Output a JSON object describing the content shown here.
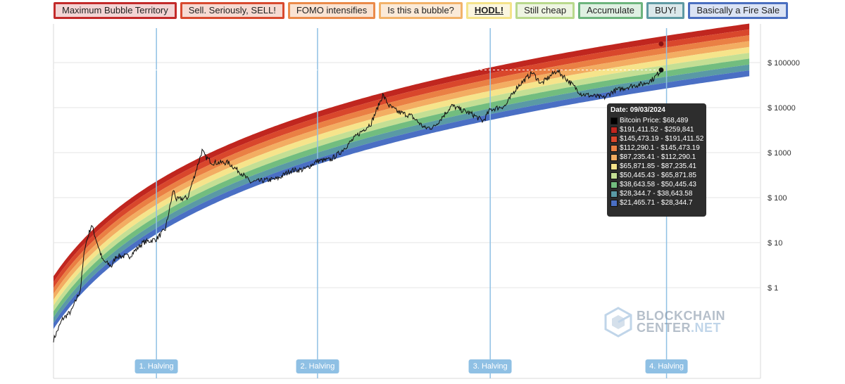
{
  "legend": [
    {
      "label": "Maximum Bubble Territory",
      "border": "#c32a2a",
      "bg": "#f3d4d4",
      "bold": false
    },
    {
      "label": "Sell. Seriously, SELL!",
      "border": "#d84a2f",
      "bg": "#f6dad2",
      "bold": false
    },
    {
      "label": "FOMO intensifies",
      "border": "#ea8a4a",
      "bg": "#fae3d2",
      "bold": false
    },
    {
      "label": "Is this a bubble?",
      "border": "#f2b26a",
      "bg": "#fbead8",
      "bold": false
    },
    {
      "label": "HODL!",
      "border": "#f4e38a",
      "bg": "#fbf6df",
      "bold": true
    },
    {
      "label": "Still cheap",
      "border": "#b9d98d",
      "bg": "#eef5e2",
      "bold": false
    },
    {
      "label": "Accumulate",
      "border": "#6db47d",
      "bg": "#dff0e2",
      "bold": false
    },
    {
      "label": "BUY!",
      "border": "#5f9aa3",
      "bg": "#dbe8ea",
      "bold": false
    },
    {
      "label": "Basically a Fire Sale",
      "border": "#4a6fc0",
      "bg": "#dbe3f4",
      "bold": false
    }
  ],
  "tooltip": {
    "date": "Date: 09/03/2024",
    "rows": [
      {
        "label": "Bitcoin Price: $68,489",
        "color": "#000000"
      },
      {
        "label": "$191,411.52 - $259,841",
        "color": "#c0261f"
      },
      {
        "label": "$145,473.19 - $191,411.52",
        "color": "#d9472c"
      },
      {
        "label": "$112,290.1 - $145,473.19",
        "color": "#ea8044"
      },
      {
        "label": "$87,235.41 - $112,290.1",
        "color": "#f3ad62"
      },
      {
        "label": "$65,871.85 - $87,235.41",
        "color": "#f6e48b"
      },
      {
        "label": "$50,445.43 - $65,871.85",
        "color": "#c4df94"
      },
      {
        "label": "$38,643.58 - $50,445.43",
        "color": "#72bd7f"
      },
      {
        "label": "$28,344.7 - $38,643.58",
        "color": "#5a9aa5"
      },
      {
        "label": "$21,465.71 - $28,344.7",
        "color": "#4a6fc4"
      }
    ]
  },
  "halvings": [
    {
      "label": "1. Halving",
      "year": 2012.9
    },
    {
      "label": "2. Halving",
      "year": 2016.5
    },
    {
      "label": "3. Halving",
      "year": 2020.36
    },
    {
      "label": "4. Halving",
      "year": 2024.3
    }
  ],
  "logo": {
    "line1": "BLOCKCHAIN",
    "line2a": "CENTER",
    "line2b": ".NET"
  },
  "chart_data": {
    "type": "line",
    "title": "",
    "xlabel": "",
    "ylabel": "",
    "y_scale": "log",
    "ylim": [
      0.05,
      200000
    ],
    "xlim_year": [
      2010.6,
      2026.4
    ],
    "y_ticks": [
      {
        "value": 1,
        "label": "$ 1"
      },
      {
        "value": 10,
        "label": "$ 10"
      },
      {
        "value": 100,
        "label": "$ 100"
      },
      {
        "value": 1000,
        "label": "$ 1000"
      },
      {
        "value": 10000,
        "label": "$ 10000"
      },
      {
        "value": 100000,
        "label": "$ 100000"
      }
    ],
    "rainbow_bands": [
      {
        "name": "Maximum Bubble Territory",
        "color": "#c0261f"
      },
      {
        "name": "Sell. Seriously, SELL!",
        "color": "#d9472c"
      },
      {
        "name": "FOMO intensifies",
        "color": "#ea8044"
      },
      {
        "name": "Is this a bubble?",
        "color": "#f3ad62"
      },
      {
        "name": "HODL!",
        "color": "#f6e48b"
      },
      {
        "name": "Still cheap",
        "color": "#c4df94"
      },
      {
        "name": "Accumulate",
        "color": "#72bd7f"
      },
      {
        "name": "BUY!",
        "color": "#5a9aa5"
      },
      {
        "name": "Basically a Fire Sale",
        "color": "#4a6fc4"
      }
    ],
    "bands_at_tooltip_date": {
      "date": "09/03/2024",
      "bounds": [
        21465.71,
        28344.7,
        38643.58,
        50445.43,
        65871.85,
        87235.41,
        112290.1,
        145473.19,
        191411.52,
        259841
      ]
    },
    "series": [
      {
        "year_value_pairs": [
          [
            2010.6,
            0.07
          ],
          [
            2010.8,
            0.2
          ],
          [
            2011.0,
            0.3
          ],
          [
            2011.2,
            0.9
          ],
          [
            2011.3,
            8
          ],
          [
            2011.45,
            25
          ],
          [
            2011.55,
            12
          ],
          [
            2011.7,
            4
          ],
          [
            2011.9,
            3
          ],
          [
            2012.0,
            5
          ],
          [
            2012.3,
            5
          ],
          [
            2012.6,
            10
          ],
          [
            2012.9,
            12
          ],
          [
            2013.1,
            20
          ],
          [
            2013.28,
            150
          ],
          [
            2013.35,
            90
          ],
          [
            2013.6,
            100
          ],
          [
            2013.92,
            1100
          ],
          [
            2014.0,
            800
          ],
          [
            2014.15,
            600
          ],
          [
            2014.5,
            600
          ],
          [
            2014.8,
            350
          ],
          [
            2015.0,
            220
          ],
          [
            2015.3,
            240
          ],
          [
            2015.6,
            260
          ],
          [
            2015.9,
            400
          ],
          [
            2016.2,
            420
          ],
          [
            2016.5,
            650
          ],
          [
            2016.8,
            700
          ],
          [
            2017.0,
            1000
          ],
          [
            2017.4,
            2500
          ],
          [
            2017.7,
            4500
          ],
          [
            2017.96,
            19000
          ],
          [
            2018.1,
            11000
          ],
          [
            2018.3,
            8000
          ],
          [
            2018.6,
            6500
          ],
          [
            2018.9,
            3500
          ],
          [
            2019.1,
            3700
          ],
          [
            2019.5,
            11000
          ],
          [
            2019.7,
            9000
          ],
          [
            2019.95,
            7200
          ],
          [
            2020.2,
            5000
          ],
          [
            2020.36,
            9000
          ],
          [
            2020.7,
            11000
          ],
          [
            2020.95,
            28000
          ],
          [
            2021.3,
            60000
          ],
          [
            2021.5,
            34000
          ],
          [
            2021.85,
            67000
          ],
          [
            2022.1,
            40000
          ],
          [
            2022.4,
            20000
          ],
          [
            2022.9,
            16500
          ],
          [
            2023.1,
            23000
          ],
          [
            2023.5,
            30000
          ],
          [
            2023.8,
            34000
          ],
          [
            2024.0,
            43000
          ],
          [
            2024.18,
            68489
          ]
        ]
      }
    ]
  }
}
